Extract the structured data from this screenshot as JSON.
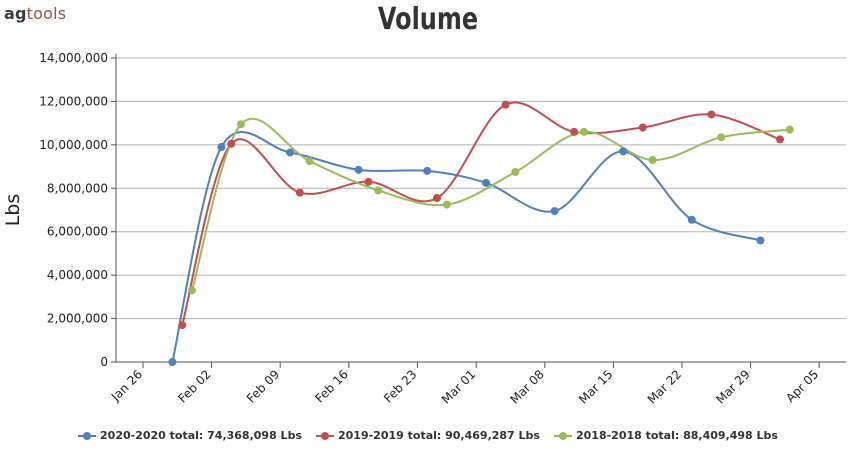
{
  "logo": {
    "text_bold": "ag",
    "text_rest": "tools"
  },
  "chart_data": {
    "type": "line",
    "title": "Volume",
    "ylabel": "Lbs",
    "xlabel": "",
    "ylim": [
      0,
      14000000
    ],
    "y_ticks": [
      0,
      2000000,
      4000000,
      6000000,
      8000000,
      10000000,
      12000000,
      14000000
    ],
    "y_tick_labels": [
      "0",
      "2,000,000",
      "4,000,000",
      "6,000,000",
      "8,000,000",
      "10,000,000",
      "12,000,000",
      "14,000,000"
    ],
    "x_ticks": [
      "Jan 26",
      "Feb 02",
      "Feb 09",
      "Feb 16",
      "Feb 23",
      "Mar 01",
      "Mar 08",
      "Mar 15",
      "Mar 22",
      "Mar 29",
      "Apr 05"
    ],
    "grid": true,
    "legend_position": "bottom",
    "series": [
      {
        "name": "2020-2020 total: 74,368,098 Lbs",
        "color": "#4f81bd",
        "points": [
          {
            "x": "Jan 29",
            "y": 0
          },
          {
            "x": "Feb 03",
            "y": 9900000
          },
          {
            "x": "Feb 10",
            "y": 9650000
          },
          {
            "x": "Feb 17",
            "y": 8850000
          },
          {
            "x": "Feb 24",
            "y": 8800000
          },
          {
            "x": "Mar 02",
            "y": 8250000
          },
          {
            "x": "Mar 09",
            "y": 6950000
          },
          {
            "x": "Mar 16",
            "y": 9700000
          },
          {
            "x": "Mar 23",
            "y": 6550000
          },
          {
            "x": "Mar 30",
            "y": 5600000
          }
        ]
      },
      {
        "name": "2019-2019 total: 90,469,287 Lbs",
        "color": "#c0504d",
        "points": [
          {
            "x": "Jan 30",
            "y": 1700000
          },
          {
            "x": "Feb 04",
            "y": 10050000
          },
          {
            "x": "Feb 11",
            "y": 7800000
          },
          {
            "x": "Feb 18",
            "y": 8300000
          },
          {
            "x": "Feb 25",
            "y": 7550000
          },
          {
            "x": "Mar 04",
            "y": 11850000
          },
          {
            "x": "Mar 11",
            "y": 10600000
          },
          {
            "x": "Mar 18",
            "y": 10800000
          },
          {
            "x": "Mar 25",
            "y": 11400000
          },
          {
            "x": "Apr 01",
            "y": 10250000
          }
        ]
      },
      {
        "name": "2018-2018 total: 88,409,498 Lbs",
        "color": "#9bbb59",
        "points": [
          {
            "x": "Jan 31",
            "y": 3300000
          },
          {
            "x": "Feb 05",
            "y": 10950000
          },
          {
            "x": "Feb 12",
            "y": 9250000
          },
          {
            "x": "Feb 19",
            "y": 7900000
          },
          {
            "x": "Feb 26",
            "y": 7250000
          },
          {
            "x": "Mar 05",
            "y": 8750000
          },
          {
            "x": "Mar 12",
            "y": 10600000
          },
          {
            "x": "Mar 19",
            "y": 9300000
          },
          {
            "x": "Mar 26",
            "y": 10350000
          },
          {
            "x": "Apr 02",
            "y": 10700000
          }
        ]
      }
    ]
  }
}
